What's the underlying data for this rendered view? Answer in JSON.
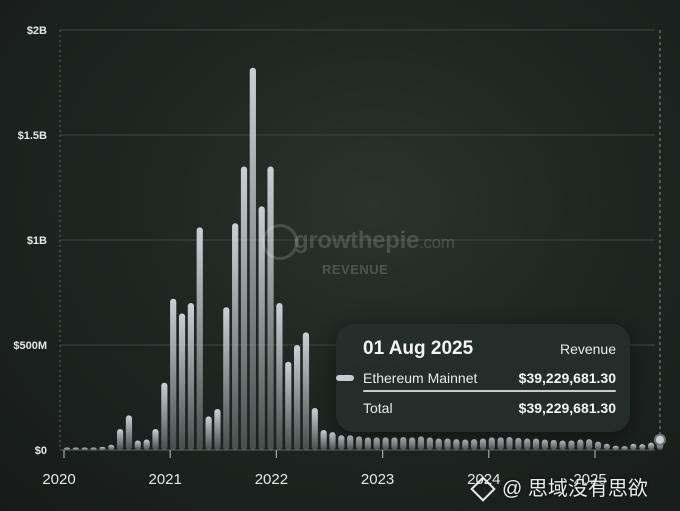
{
  "watermark": {
    "brand": "growthepie",
    "domain": ".com",
    "subtitle": "REVENUE"
  },
  "tooltip": {
    "date": "01 Aug 2025",
    "metric": "Revenue",
    "chain": "Ethereum Mainnet",
    "chain_value": "$39,229,681.30",
    "total_label": "Total",
    "total_value": "$39,229,681.30"
  },
  "corner_watermark": {
    "text": "@ 思域没有思欲",
    "icon": "diamond-logo-icon"
  },
  "chart_data": {
    "type": "bar",
    "title": "",
    "xlabel": "",
    "ylabel": "",
    "ylim": [
      0,
      2000000000
    ],
    "y_ticks": [
      {
        "value": 0,
        "label": "$0"
      },
      {
        "value": 500000000,
        "label": "$500M"
      },
      {
        "value": 1000000000,
        "label": "$1B"
      },
      {
        "value": 1500000000,
        "label": "$1.5B"
      },
      {
        "value": 2000000000,
        "label": "$2B"
      }
    ],
    "x_ticks": [
      "2020",
      "2021",
      "2022",
      "2023",
      "2024",
      "2025"
    ],
    "x_start": "2020-01",
    "series": [
      {
        "name": "Ethereum Mainnet",
        "color": "#c0c8cc",
        "x": [
          "2020-01",
          "2020-02",
          "2020-03",
          "2020-04",
          "2020-05",
          "2020-06",
          "2020-07",
          "2020-08",
          "2020-09",
          "2020-10",
          "2020-11",
          "2020-12",
          "2021-01",
          "2021-02",
          "2021-03",
          "2021-04",
          "2021-05",
          "2021-06",
          "2021-07",
          "2021-08",
          "2021-09",
          "2021-10",
          "2021-11",
          "2021-12",
          "2022-01",
          "2022-02",
          "2022-03",
          "2022-04",
          "2022-05",
          "2022-06",
          "2022-07",
          "2022-08",
          "2022-09",
          "2022-10",
          "2022-11",
          "2022-12",
          "2023-01",
          "2023-02",
          "2023-03",
          "2023-04",
          "2023-05",
          "2023-06",
          "2023-07",
          "2023-08",
          "2023-09",
          "2023-10",
          "2023-11",
          "2023-12",
          "2024-01",
          "2024-02",
          "2024-03",
          "2024-04",
          "2024-05",
          "2024-06",
          "2024-07",
          "2024-08",
          "2024-09",
          "2024-10",
          "2024-11",
          "2024-12",
          "2025-01",
          "2025-02",
          "2025-03",
          "2025-04",
          "2025-05",
          "2025-06",
          "2025-07",
          "2025-08"
        ],
        "values": [
          3000000,
          4000000,
          8000000,
          6000000,
          15000000,
          25000000,
          100000000,
          165000000,
          45000000,
          50000000,
          100000000,
          320000000,
          720000000,
          650000000,
          700000000,
          1060000000,
          160000000,
          195000000,
          680000000,
          1080000000,
          1350000000,
          1820000000,
          1160000000,
          1350000000,
          700000000,
          420000000,
          500000000,
          560000000,
          200000000,
          95000000,
          85000000,
          70000000,
          70000000,
          65000000,
          60000000,
          60000000,
          60000000,
          60000000,
          62000000,
          60000000,
          65000000,
          60000000,
          55000000,
          55000000,
          52000000,
          50000000,
          52000000,
          55000000,
          60000000,
          60000000,
          62000000,
          58000000,
          55000000,
          55000000,
          50000000,
          48000000,
          45000000,
          45000000,
          50000000,
          52000000,
          40000000,
          30000000,
          20000000,
          18000000,
          30000000,
          28000000,
          35000000,
          39229681.3
        ]
      }
    ],
    "highlight": {
      "x": "2025-08",
      "value": 39229681.3
    },
    "grid": true,
    "legend": "none"
  }
}
